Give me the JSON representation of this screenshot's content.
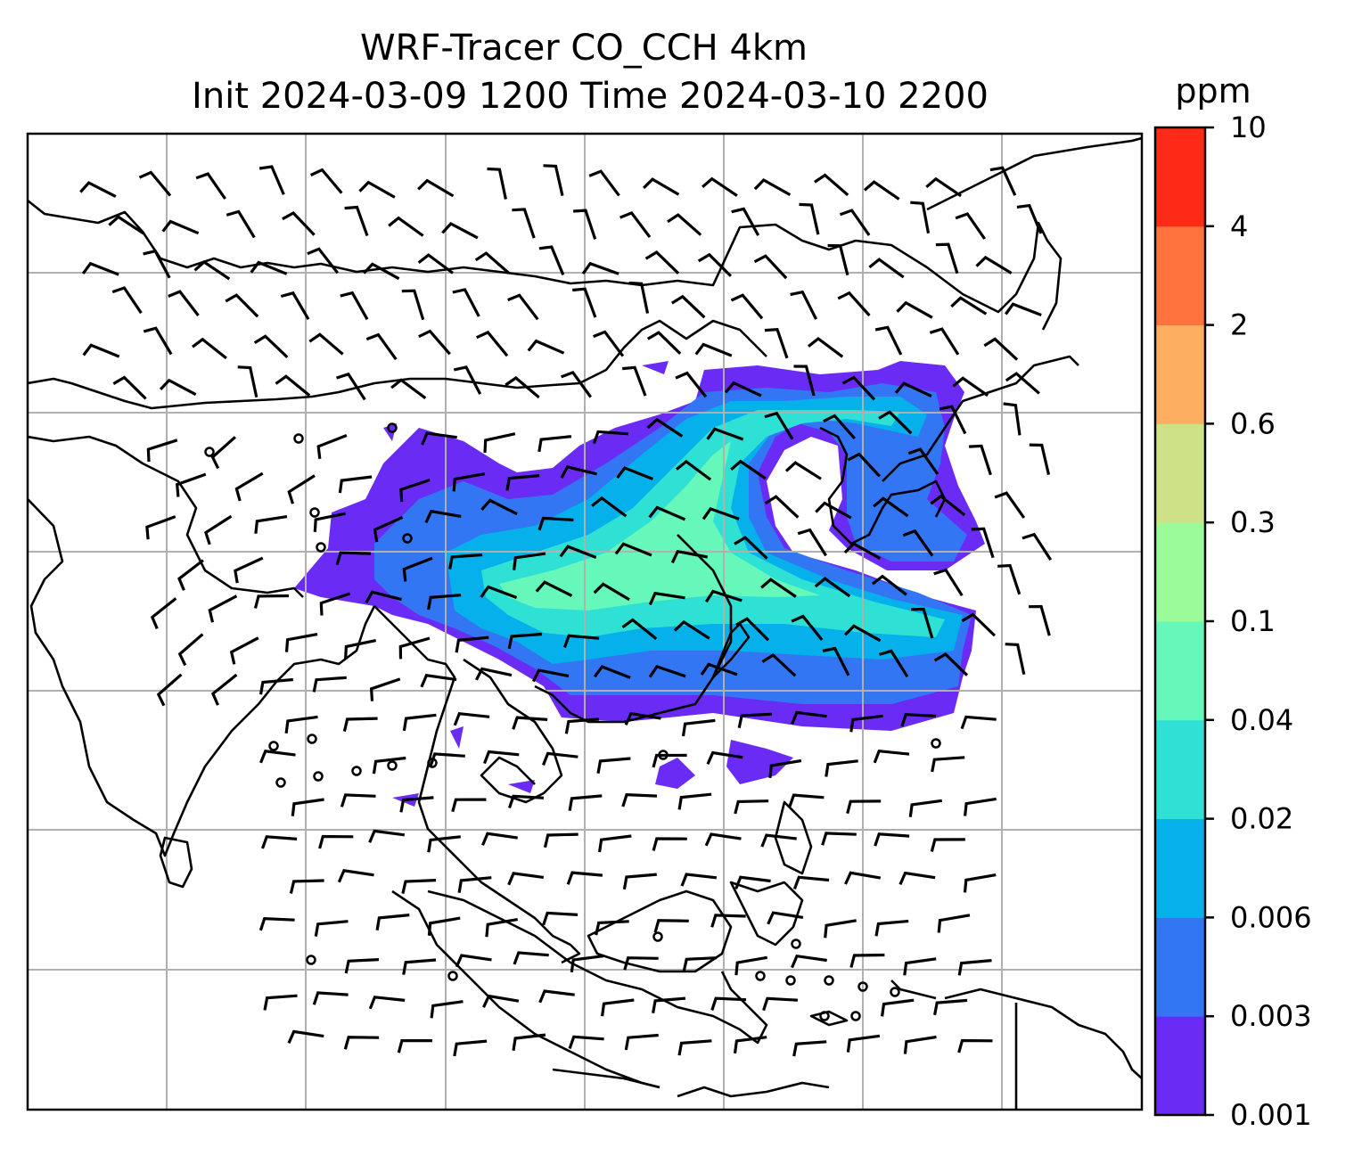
{
  "title_line1": "WRF-Tracer CO_CCH 4km",
  "title_line2": "Init 2024-03-09 1200 Time 2024-03-10 2200",
  "colorbar": {
    "unit": "ppm",
    "ticks": [
      "0.001",
      "0.003",
      "0.006",
      "0.02",
      "0.04",
      "0.1",
      "0.3",
      "0.6",
      "2",
      "4",
      "10"
    ],
    "colors": [
      "#6a2cf5",
      "#3276f3",
      "#06b0ea",
      "#2fe0d4",
      "#66f7bb",
      "#9cfb99",
      "#cfe186",
      "#fdae60",
      "#fe723d",
      "#fd2a17"
    ]
  },
  "plume_colors": {
    "outer": "#6a2cf5",
    "low": "#3276f3",
    "mid": "#06b0ea",
    "core": "#2fe0d4",
    "peak": "#66f7bb"
  },
  "fields": {
    "wind_barbs": "black wind barbs over domain",
    "coastlines": "black country and coast lines",
    "gridlines": "grey lat/lon gridlines"
  }
}
